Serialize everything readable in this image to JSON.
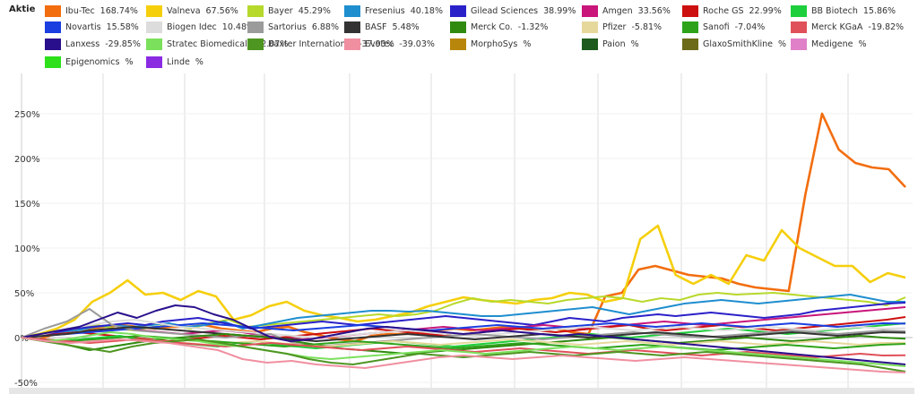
{
  "legend_title": "Aktie",
  "chart_data": {
    "type": "line",
    "yticks": [
      "250%",
      "200%",
      "150%",
      "100%",
      "50%",
      "0%",
      "-50%"
    ],
    "ylim": [
      -50,
      300
    ],
    "grid": true,
    "legend_position": "top",
    "series": [
      {
        "name": "Ibu-Tec",
        "value": "168.74%",
        "color": "#f26d0e",
        "values": [
          0,
          -2,
          4,
          8,
          10,
          12,
          14,
          12,
          10,
          12,
          12,
          14,
          10,
          8,
          6,
          10,
          12,
          6,
          2,
          -2,
          -4,
          2,
          4,
          4,
          6,
          8,
          10,
          8,
          10,
          12,
          10,
          8,
          10,
          6,
          4,
          46,
          50,
          76,
          80,
          75,
          70,
          68,
          66,
          60,
          56,
          54,
          52,
          160,
          250,
          210,
          195,
          190,
          188,
          168
        ]
      },
      {
        "name": "Valneva",
        "value": "67.56%",
        "color": "#f5cf0c",
        "values": [
          0,
          4,
          10,
          20,
          40,
          50,
          64,
          48,
          50,
          42,
          52,
          46,
          20,
          25,
          35,
          40,
          30,
          25,
          22,
          18,
          20,
          24,
          28,
          35,
          40,
          45,
          42,
          40,
          38,
          42,
          44,
          50,
          48,
          40,
          44,
          110,
          125,
          70,
          60,
          70,
          60,
          92,
          86,
          120,
          100,
          90,
          80,
          80,
          62,
          72,
          67
        ]
      },
      {
        "name": "Bayer",
        "value": "45.29%",
        "color": "#b7d92b",
        "values": [
          0,
          4,
          8,
          12,
          14,
          10,
          8,
          12,
          14,
          10,
          16,
          20,
          12,
          14,
          16,
          18,
          20,
          22,
          24,
          26,
          24,
          26,
          30,
          38,
          44,
          40,
          42,
          40,
          38,
          42,
          44,
          46,
          44,
          40,
          44,
          42,
          48,
          50,
          48,
          49,
          50,
          48,
          46,
          44,
          42,
          40,
          36,
          45
        ]
      },
      {
        "name": "Fresenius",
        "value": "40.18%",
        "color": "#1f8ecf",
        "values": [
          0,
          2,
          6,
          8,
          12,
          14,
          12,
          14,
          16,
          12,
          14,
          18,
          10,
          14,
          18,
          22,
          24,
          26,
          28,
          30,
          30,
          29,
          30,
          28,
          26,
          24,
          24,
          26,
          28,
          30,
          32,
          34,
          30,
          26,
          30,
          34,
          38,
          40,
          42,
          40,
          38,
          40,
          42,
          44,
          46,
          48,
          44,
          40,
          40
        ]
      },
      {
        "name": "Gilead Sciences",
        "value": "38.99%",
        "color": "#2b21c9",
        "values": [
          0,
          2,
          6,
          10,
          12,
          14,
          16,
          14,
          18,
          20,
          22,
          18,
          14,
          10,
          12,
          14,
          16,
          18,
          16,
          14,
          16,
          18,
          20,
          22,
          24,
          22,
          20,
          18,
          16,
          14,
          18,
          22,
          20,
          18,
          22,
          24,
          26,
          24,
          26,
          28,
          26,
          24,
          22,
          24,
          26,
          30,
          32,
          34,
          36,
          38,
          39
        ]
      },
      {
        "name": "Amgen",
        "value": "33.56%",
        "color": "#c8167a",
        "values": [
          0,
          2,
          4,
          6,
          8,
          10,
          8,
          6,
          4,
          6,
          8,
          6,
          2,
          0,
          -2,
          0,
          2,
          4,
          6,
          8,
          10,
          12,
          10,
          8,
          10,
          12,
          14,
          12,
          10,
          12,
          14,
          16,
          18,
          16,
          14,
          16,
          18,
          20,
          22,
          24,
          26,
          28,
          30,
          32,
          34
        ]
      },
      {
        "name": "Roche GS",
        "value": "22.99%",
        "color": "#cc1010",
        "values": [
          0,
          2,
          4,
          6,
          4,
          2,
          0,
          -2,
          -4,
          -2,
          0,
          2,
          0,
          -2,
          0,
          2,
          4,
          6,
          8,
          10,
          8,
          6,
          4,
          2,
          4,
          6,
          8,
          10,
          8,
          6,
          8,
          10,
          12,
          14,
          10,
          8,
          10,
          12,
          14,
          12,
          10,
          8,
          10,
          12,
          14,
          16,
          18,
          20,
          23
        ]
      },
      {
        "name": "BB Biotech",
        "value": "15.86%",
        "color": "#1dcf3c",
        "values": [
          0,
          -2,
          -4,
          -2,
          0,
          2,
          -2,
          -4,
          -6,
          -8,
          -10,
          -6,
          -4,
          -8,
          -10,
          -12,
          -10,
          -8,
          -6,
          -4,
          -6,
          -8,
          -10,
          -8,
          -6,
          -4,
          -2,
          0,
          2,
          4,
          2,
          0,
          2,
          4,
          6,
          8,
          10,
          8,
          6,
          4,
          6,
          8,
          10,
          12,
          14,
          16
        ]
      },
      {
        "name": "Novartis",
        "value": "15.58%",
        "color": "#1a3ee0",
        "values": [
          0,
          2,
          4,
          6,
          8,
          10,
          12,
          14,
          16,
          14,
          12,
          10,
          8,
          10,
          12,
          14,
          12,
          10,
          8,
          10,
          12,
          14,
          12,
          10,
          12,
          14,
          16,
          14,
          12,
          14,
          16,
          14,
          12,
          14,
          16,
          14,
          12,
          14,
          16,
          15.6
        ]
      },
      {
        "name": "Biogen Idec",
        "value": "10.48%",
        "color": "#dcdcdc",
        "values": [
          0,
          4,
          10,
          14,
          18,
          20,
          16,
          12,
          10,
          8,
          6,
          4,
          2,
          0,
          2,
          4,
          6,
          8,
          6,
          4,
          2,
          4,
          6,
          8,
          10,
          12,
          10,
          8,
          10,
          12,
          10,
          8,
          10,
          12,
          10,
          8,
          10,
          12,
          10,
          10.5
        ]
      },
      {
        "name": "Sartorius",
        "value": "6.88%",
        "color": "#9b9b9b",
        "values": [
          0,
          10,
          18,
          32,
          14,
          8,
          6,
          4,
          2,
          0,
          2,
          4,
          -6,
          -10,
          -8,
          -6,
          -4,
          -2,
          0,
          2,
          4,
          2,
          0,
          -2,
          0,
          2,
          4,
          6,
          4,
          2,
          0,
          2,
          4,
          6,
          8,
          6,
          4,
          6,
          8,
          7
        ]
      },
      {
        "name": "BASF",
        "value": "5.48%",
        "color": "#333333",
        "values": [
          0,
          2,
          4,
          8,
          10,
          12,
          10,
          8,
          6,
          4,
          2,
          0,
          -2,
          -4,
          -2,
          0,
          2,
          4,
          2,
          0,
          -2,
          0,
          2,
          4,
          2,
          0,
          2,
          4,
          6,
          4,
          2,
          0,
          2,
          4,
          6,
          4,
          2,
          4,
          6,
          5.5
        ]
      },
      {
        "name": "Merck Co.",
        "value": "-1.32%",
        "color": "#2f8a0f",
        "values": [
          0,
          -4,
          -8,
          -14,
          -10,
          -6,
          -2,
          0,
          2,
          4,
          2,
          0,
          -4,
          -8,
          -12,
          -14,
          -16,
          -18,
          -16,
          -14,
          -12,
          -10,
          -8,
          -6,
          -4,
          -2,
          0,
          -2,
          -4,
          -6,
          -4,
          -2,
          0,
          -2,
          -4,
          -2,
          0,
          2,
          0,
          -1.3
        ]
      },
      {
        "name": "Pfizer",
        "value": "-5.81%",
        "color": "#e6d89a",
        "values": [
          0,
          -2,
          -4,
          -6,
          -4,
          -2,
          -4,
          -6,
          -8,
          -6,
          -4,
          -6,
          -8,
          -10,
          -8,
          -6,
          -4,
          -6,
          -8,
          -6,
          -4,
          -2,
          -4,
          -6,
          -8,
          -6,
          -4,
          -6,
          -8,
          -6,
          -4,
          -6,
          -8,
          -6,
          -4,
          -6,
          -8,
          -6,
          -5.8
        ]
      },
      {
        "name": "Sanofi",
        "value": "-7.04%",
        "color": "#2ea31a",
        "values": [
          0,
          -2,
          -4,
          -2,
          0,
          2,
          0,
          -2,
          -4,
          -6,
          -8,
          -10,
          -8,
          -6,
          -4,
          -6,
          -8,
          -10,
          -12,
          -10,
          -8,
          -6,
          -8,
          -10,
          -12,
          -10,
          -8,
          -10,
          -12,
          -14,
          -12,
          -10,
          -8,
          -10,
          -12,
          -10,
          -8,
          -7
        ]
      },
      {
        "name": "Merck KGaA",
        "value": "-19.82%",
        "color": "#e0505a",
        "values": [
          0,
          -2,
          -4,
          -6,
          -4,
          -2,
          -4,
          -6,
          -8,
          -10,
          -8,
          -6,
          -8,
          -10,
          -12,
          -14,
          -12,
          -10,
          -12,
          -14,
          -16,
          -14,
          -12,
          -14,
          -16,
          -18,
          -16,
          -14,
          -16,
          -18,
          -20,
          -18,
          -16,
          -18,
          -20,
          -22,
          -20,
          -18,
          -20,
          -19.8
        ]
      },
      {
        "name": "Lanxess",
        "value": "-29.85%",
        "color": "#2a0f8c",
        "values": [
          0,
          4,
          8,
          12,
          20,
          28,
          22,
          30,
          36,
          34,
          26,
          20,
          10,
          0,
          -4,
          -2,
          2,
          6,
          10,
          12,
          10,
          8,
          6,
          4,
          6,
          8,
          6,
          4,
          2,
          4,
          2,
          0,
          -2,
          -4,
          -6,
          -8,
          -10,
          -12,
          -14,
          -16,
          -18,
          -20,
          -22,
          -24,
          -26,
          -28,
          -30
        ]
      },
      {
        "name": "Stratec Biomedical",
        "value": "-32.07%",
        "color": "#7be05c",
        "values": [
          0,
          -4,
          -2,
          2,
          6,
          4,
          0,
          -2,
          -4,
          -8,
          -10,
          -14,
          -18,
          -22,
          -24,
          -22,
          -20,
          -18,
          -16,
          -14,
          -16,
          -18,
          -16,
          -14,
          -12,
          -10,
          -12,
          -14,
          -12,
          -10,
          -12,
          -14,
          -16,
          -18,
          -20,
          -22,
          -24,
          -26,
          -28,
          -30,
          -32
        ]
      },
      {
        "name": "Baxter International",
        "value": "-37.93%",
        "color": "#4e9622",
        "values": [
          0,
          -4,
          -8,
          -12,
          -16,
          -10,
          -6,
          -4,
          -2,
          -6,
          -10,
          -14,
          -18,
          -24,
          -28,
          -30,
          -26,
          -22,
          -18,
          -20,
          -22,
          -20,
          -18,
          -16,
          -18,
          -20,
          -18,
          -16,
          -18,
          -20,
          -18,
          -16,
          -18,
          -20,
          -22,
          -24,
          -26,
          -28,
          -30,
          -34,
          -38
        ]
      },
      {
        "name": "Evotec",
        "value": "-39.03%",
        "color": "#f08fa0",
        "values": [
          0,
          -4,
          -6,
          -4,
          -2,
          -4,
          -6,
          -10,
          -14,
          -24,
          -28,
          -26,
          -30,
          -32,
          -34,
          -30,
          -26,
          -22,
          -20,
          -22,
          -24,
          -22,
          -20,
          -22,
          -24,
          -26,
          -24,
          -22,
          -24,
          -26,
          -28,
          -30,
          -32,
          -34,
          -36,
          -38,
          -39
        ]
      },
      {
        "name": "MorphoSys",
        "value": "%",
        "color": "#b8860b",
        "values": []
      },
      {
        "name": "Paion",
        "value": "%",
        "color": "#1e5a1e",
        "values": []
      },
      {
        "name": "GlaxoSmithKline",
        "value": "%",
        "color": "#6b6b1a",
        "values": []
      },
      {
        "name": "Medigene",
        "value": "%",
        "color": "#e080c8",
        "values": []
      },
      {
        "name": "Epigenomics",
        "value": "%",
        "color": "#2de01a",
        "values": []
      },
      {
        "name": "Linde",
        "value": "%",
        "color": "#8a2be2",
        "values": []
      }
    ]
  }
}
